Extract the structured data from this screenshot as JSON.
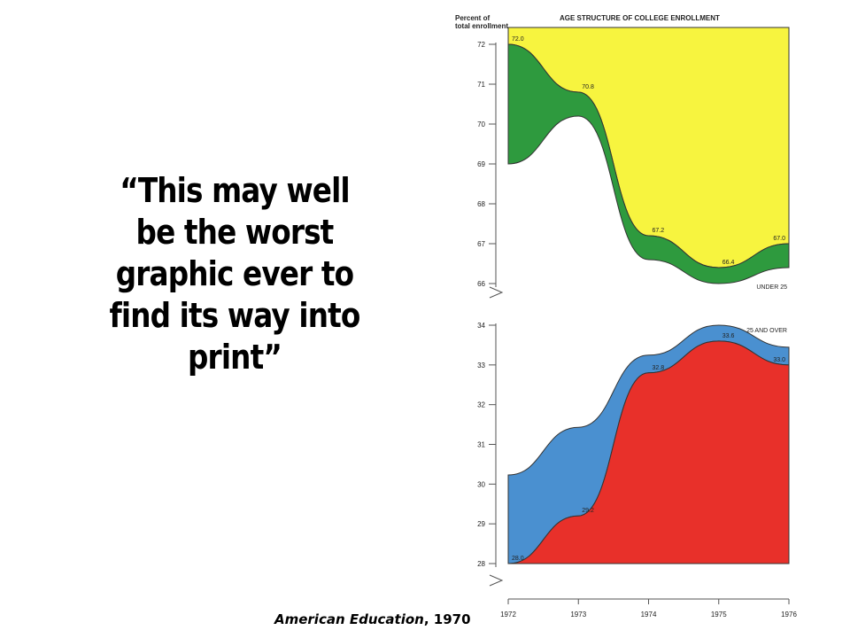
{
  "quote": {
    "lines": [
      "“This may well",
      "be the worst",
      "graphic ever to",
      "find its way into",
      "print”"
    ]
  },
  "caption": {
    "source": "American Education",
    "year": ", 1970"
  },
  "colors": {
    "under25_fill": "#f7f43f",
    "under25_band": "#2e9a3e",
    "over25_fill": "#e8302a",
    "over25_band": "#4a90d0",
    "axis": "#555555"
  },
  "chart_data": {
    "type": "area",
    "title": "AGE STRUCTURE OF COLLEGE ENROLLMENT",
    "ylabel": "Percent of total enrollment",
    "x": [
      1972,
      1973,
      1974,
      1975,
      1976
    ],
    "xtick_labels": [
      "1972",
      "1973",
      "1974",
      "1975",
      "1976"
    ],
    "panels": [
      {
        "name": "UNDER 25",
        "ylim": [
          66,
          72
        ],
        "yticks": [
          72,
          71,
          70,
          69,
          68,
          67,
          66
        ],
        "values": [
          72.0,
          70.8,
          67.2,
          66.4,
          67.0
        ],
        "value_labels": [
          "72.0",
          "70.8",
          "67.2",
          "66.4",
          "67.0"
        ]
      },
      {
        "name": "25 AND OVER",
        "ylim": [
          28,
          34
        ],
        "yticks": [
          34,
          33,
          32,
          31,
          30,
          29,
          28
        ],
        "values": [
          28.0,
          29.2,
          32.8,
          33.6,
          33.0
        ],
        "value_labels": [
          "28.0",
          "29.2",
          "32.8",
          "33.6",
          "33.0"
        ]
      }
    ]
  }
}
